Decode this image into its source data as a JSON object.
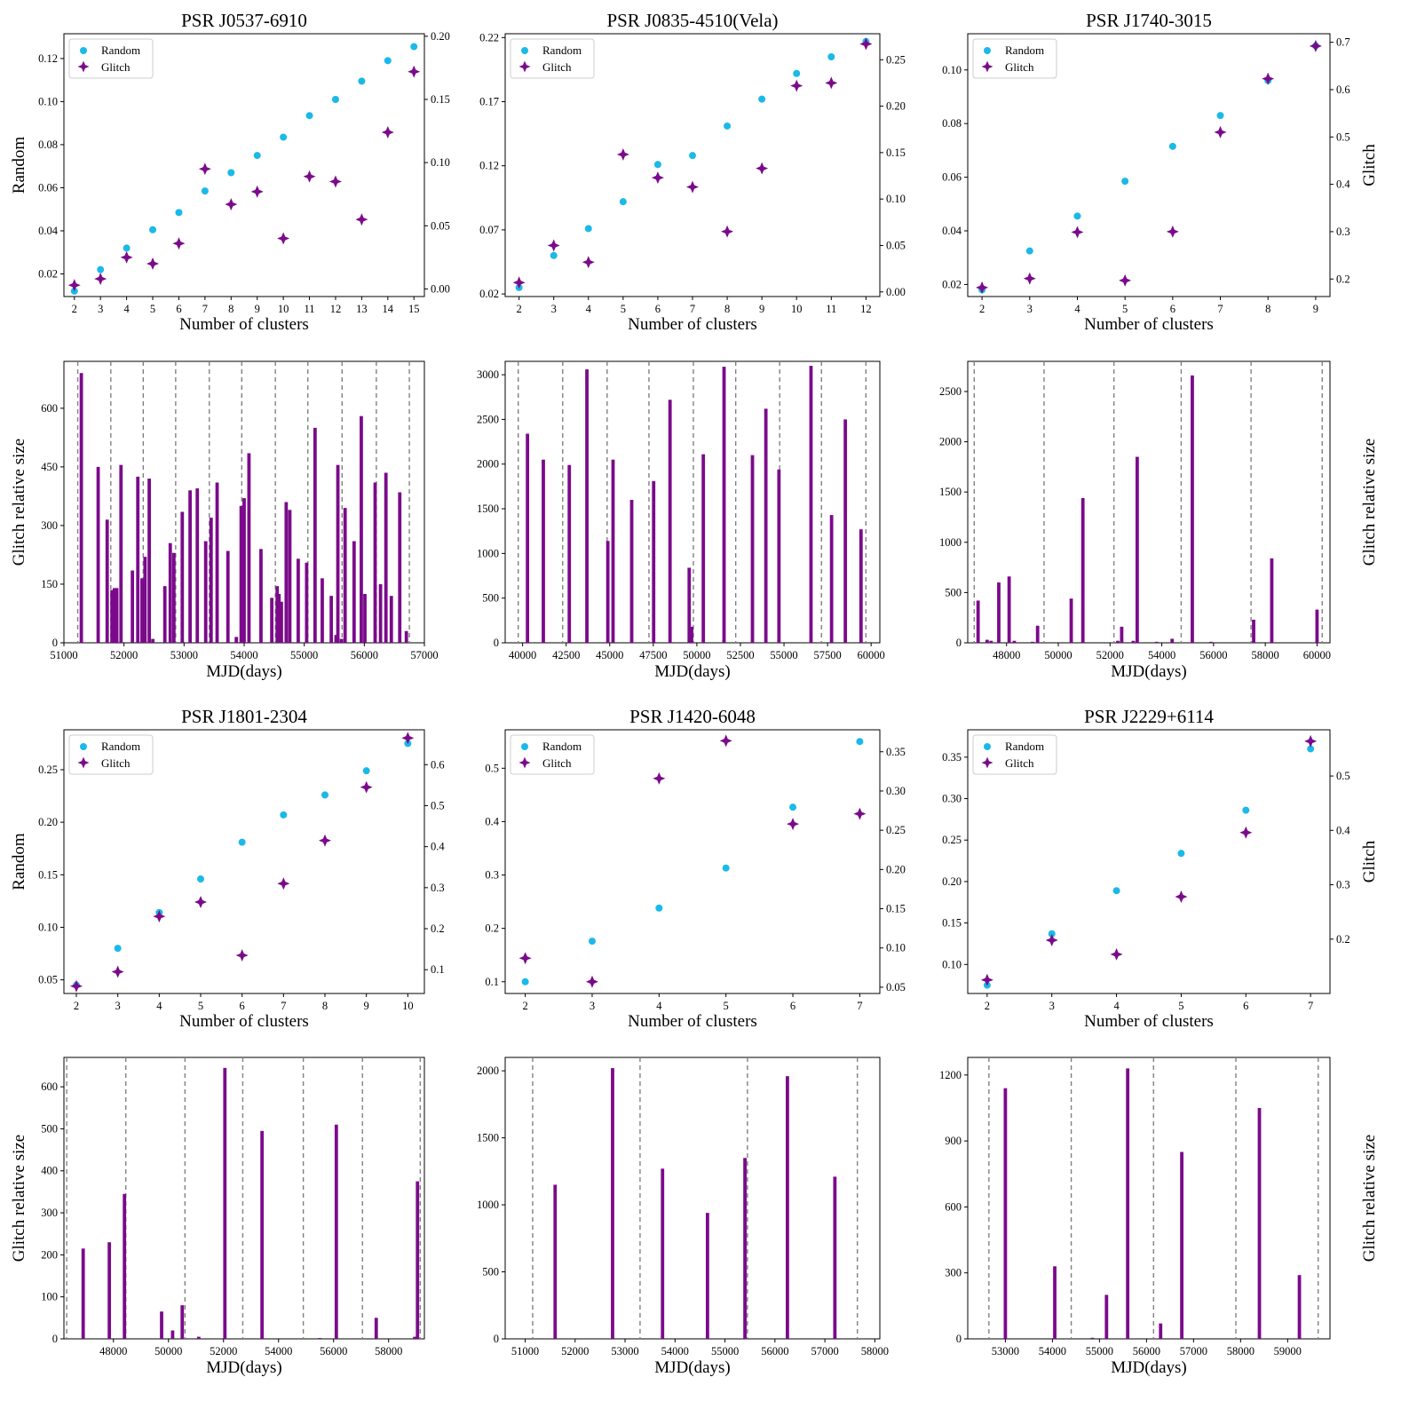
{
  "colors": {
    "random": "#1bb9e8",
    "glitch": "#7b0a8b",
    "bar": "#7b0a8b",
    "vline": "#808080"
  },
  "panels": [
    {
      "title": "PSR J0537-6910",
      "scatter": {
        "xlabel": "Number of clusters",
        "ylabel_left": "Random",
        "ylabel_right": "",
        "legend": [
          "Random",
          "Glitch"
        ],
        "x": [
          2,
          3,
          4,
          5,
          6,
          7,
          8,
          9,
          10,
          11,
          12,
          13,
          14,
          15
        ],
        "random": [
          0.012,
          0.022,
          0.032,
          0.0405,
          0.0485,
          0.0585,
          0.067,
          0.075,
          0.0835,
          0.0935,
          0.101,
          0.1095,
          0.119,
          0.1255
        ],
        "glitch": [
          0.003,
          0.008,
          0.025,
          0.02,
          0.036,
          0.095,
          0.067,
          0.077,
          0.04,
          0.089,
          0.085,
          0.055,
          0.124,
          0.172
        ],
        "xlim": [
          1.6,
          15.4
        ],
        "yleft": [
          0.0095,
          0.1315
        ],
        "yleft_ticks": [
          0.02,
          0.04,
          0.06,
          0.08,
          0.1,
          0.12
        ],
        "yleft_dec": 2,
        "yright": [
          -0.006,
          0.202
        ],
        "yright_ticks": [
          0.0,
          0.05,
          0.1,
          0.15,
          0.2
        ],
        "yright_dec": 2
      },
      "bars": {
        "xlabel": "MJD(days)",
        "ylabel": "Glitch relative size",
        "xlim": [
          51000,
          57000
        ],
        "xticks": [
          51000,
          52000,
          53000,
          54000,
          55000,
          56000,
          57000
        ],
        "ylim": [
          0,
          720
        ],
        "yticks": [
          0,
          150,
          300,
          450,
          600
        ],
        "vlines": [
          51230,
          51780,
          52320,
          52860,
          53420,
          53960,
          54520,
          55060,
          55630,
          56200,
          56750
        ],
        "x": [
          51290,
          51570,
          51720,
          51800,
          51840,
          51880,
          51950,
          52140,
          52230,
          52300,
          52350,
          52420,
          52480,
          52680,
          52770,
          52830,
          52970,
          53100,
          53220,
          53360,
          53450,
          53550,
          53730,
          53870,
          53950,
          54000,
          54080,
          54280,
          54460,
          54550,
          54580,
          54620,
          54700,
          54760,
          54900,
          55040,
          55180,
          55300,
          55450,
          55530,
          55560,
          55620,
          55680,
          55830,
          55950,
          56010,
          56180,
          56270,
          56360,
          56450,
          56590,
          56700
        ],
        "values": [
          690,
          450,
          315,
          135,
          140,
          140,
          455,
          185,
          425,
          165,
          220,
          420,
          10,
          145,
          255,
          230,
          335,
          390,
          395,
          260,
          320,
          410,
          235,
          15,
          350,
          370,
          485,
          240,
          115,
          145,
          125,
          105,
          360,
          340,
          215,
          205,
          550,
          165,
          120,
          20,
          455,
          10,
          345,
          260,
          580,
          125,
          410,
          150,
          435,
          120,
          385,
          30
        ]
      }
    },
    {
      "title": "PSR J0835-4510(Vela)",
      "scatter": {
        "xlabel": "Number of clusters",
        "ylabel_left": "",
        "ylabel_right": "",
        "legend": [
          "Random",
          "Glitch"
        ],
        "x": [
          2,
          3,
          4,
          5,
          6,
          7,
          8,
          9,
          10,
          11,
          12
        ],
        "random": [
          0.025,
          0.05,
          0.071,
          0.092,
          0.121,
          0.128,
          0.151,
          0.172,
          0.192,
          0.205,
          0.217
        ],
        "glitch": [
          0.01,
          0.05,
          0.032,
          0.148,
          0.123,
          0.113,
          0.065,
          0.133,
          0.222,
          0.225,
          0.267
        ],
        "xlim": [
          1.6,
          12.4
        ],
        "yleft": [
          0.018,
          0.223
        ],
        "yleft_ticks": [
          0.02,
          0.07,
          0.12,
          0.17,
          0.22
        ],
        "yleft_dec": 2,
        "yright": [
          -0.005,
          0.278
        ],
        "yright_ticks": [
          0.0,
          0.05,
          0.1,
          0.15,
          0.2,
          0.25
        ],
        "yright_dec": 2
      },
      "bars": {
        "xlabel": "MJD(days)",
        "ylabel": "",
        "xlim": [
          39000,
          60500
        ],
        "xticks": [
          40000,
          42500,
          45000,
          47500,
          50000,
          52500,
          55000,
          57500,
          60000
        ],
        "ylim": [
          0,
          3150
        ],
        "yticks": [
          0,
          500,
          1000,
          1500,
          2000,
          2500,
          3000
        ],
        "vlines": [
          39750,
          42300,
          44850,
          47250,
          49800,
          52230,
          54750,
          57150,
          59700
        ],
        "x": [
          40280,
          41190,
          42680,
          43690,
          44890,
          45190,
          46260,
          47520,
          48460,
          49560,
          49700,
          50370,
          51550,
          51560,
          53190,
          53960,
          54710,
          56550,
          57730,
          58520,
          59420
        ],
        "values": [
          2340,
          2050,
          1990,
          3060,
          1140,
          2050,
          1600,
          1810,
          2720,
          840,
          180,
          2110,
          30,
          3090,
          2100,
          2620,
          1940,
          3100,
          1430,
          2500,
          1270
        ]
      }
    },
    {
      "title": "PSR J1740-3015",
      "scatter": {
        "xlabel": "Number of clusters",
        "ylabel_left": "",
        "ylabel_right": "Glitch",
        "legend": [
          "Random",
          "Glitch"
        ],
        "x": [
          2,
          3,
          4,
          5,
          6,
          7,
          8,
          9
        ],
        "random": [
          0.018,
          0.0325,
          0.0455,
          0.0585,
          0.0715,
          0.083,
          0.096,
          0.109
        ],
        "glitch": [
          0.182,
          0.201,
          0.299,
          0.197,
          0.3,
          0.51,
          0.623,
          0.692
        ],
        "xlim": [
          1.7,
          9.3
        ],
        "yleft": [
          0.0155,
          0.1135
        ],
        "yleft_ticks": [
          0.02,
          0.04,
          0.06,
          0.08,
          0.1
        ],
        "yleft_dec": 2,
        "yright": [
          0.163,
          0.718
        ],
        "yright_ticks": [
          0.2,
          0.3,
          0.4,
          0.5,
          0.6,
          0.7
        ],
        "yright_dec": 1
      },
      "bars": {
        "xlabel": "MJD(days)",
        "ylabel": "Glitch relative size",
        "xlim": [
          46500,
          60500
        ],
        "xticks": [
          48000,
          50000,
          52000,
          54000,
          56000,
          58000,
          60000
        ],
        "ylim": [
          0,
          2800
        ],
        "yticks": [
          0,
          500,
          1000,
          1500,
          2000,
          2500
        ],
        "vlines": [
          46750,
          49450,
          52150,
          54750,
          57450,
          60200
        ],
        "x": [
          46900,
          47250,
          47400,
          47700,
          48100,
          48300,
          49000,
          49200,
          50500,
          50950,
          52300,
          52450,
          52900,
          53050,
          53800,
          54400,
          55180,
          55900,
          57550,
          58250,
          60000
        ],
        "values": [
          420,
          30,
          20,
          600,
          660,
          20,
          10,
          170,
          440,
          1440,
          20,
          160,
          20,
          1850,
          10,
          40,
          2660,
          10,
          230,
          840,
          330
        ]
      }
    },
    {
      "title": "PSR J1801-2304",
      "scatter": {
        "xlabel": "Number of clusters",
        "ylabel_left": "Random",
        "ylabel_right": "",
        "legend": [
          "Random",
          "Glitch"
        ],
        "x": [
          2,
          3,
          4,
          5,
          6,
          7,
          8,
          9,
          10
        ],
        "random": [
          0.045,
          0.08,
          0.114,
          0.146,
          0.181,
          0.207,
          0.226,
          0.249,
          0.275
        ],
        "glitch": [
          0.06,
          0.095,
          0.23,
          0.265,
          0.135,
          0.31,
          0.415,
          0.545,
          0.665
        ],
        "xlim": [
          1.7,
          10.4
        ],
        "yleft": [
          0.037,
          0.288
        ],
        "yleft_ticks": [
          0.05,
          0.1,
          0.15,
          0.2,
          0.25
        ],
        "yleft_dec": 2,
        "yright": [
          0.042,
          0.685
        ],
        "yright_ticks": [
          0.1,
          0.2,
          0.3,
          0.4,
          0.5,
          0.6
        ],
        "yright_dec": 1
      },
      "bars": {
        "xlabel": "MJD(days)",
        "ylabel": "Glitch relative size",
        "xlim": [
          46200,
          59300
        ],
        "xticks": [
          48000,
          50000,
          52000,
          54000,
          56000,
          58000
        ],
        "ylim": [
          0,
          670
        ],
        "yticks": [
          0,
          100,
          200,
          300,
          400,
          500,
          600
        ],
        "vlines": [
          46300,
          48450,
          50600,
          52700,
          54900,
          57050,
          59150
        ],
        "x": [
          46900,
          47850,
          48400,
          49750,
          50150,
          50500,
          51100,
          52050,
          53400,
          55500,
          56100,
          57550,
          58950,
          59050
        ],
        "values": [
          215,
          230,
          345,
          65,
          20,
          80,
          5,
          645,
          495,
          2,
          510,
          50,
          5,
          375
        ]
      }
    },
    {
      "title": "PSR J1420-6048",
      "scatter": {
        "xlabel": "Number of clusters",
        "ylabel_left": "",
        "ylabel_right": "",
        "legend": [
          "Random",
          "Glitch"
        ],
        "x": [
          2,
          3,
          4,
          5,
          6,
          7
        ],
        "random": [
          0.1,
          0.176,
          0.238,
          0.313,
          0.427,
          0.55
        ],
        "glitch": [
          0.087,
          0.057,
          0.316,
          0.364,
          0.258,
          0.271
        ],
        "xlim": [
          1.7,
          7.3
        ],
        "yleft": [
          0.078,
          0.572
        ],
        "yleft_ticks": [
          0.1,
          0.2,
          0.3,
          0.4,
          0.5
        ],
        "yleft_dec": 1,
        "yright": [
          0.042,
          0.378
        ],
        "yright_ticks": [
          0.05,
          0.1,
          0.15,
          0.2,
          0.25,
          0.3,
          0.35
        ],
        "yright_dec": 2
      },
      "bars": {
        "xlabel": "MJD(days)",
        "ylabel": "",
        "xlim": [
          50600,
          58100
        ],
        "xticks": [
          51000,
          52000,
          53000,
          54000,
          55000,
          56000,
          57000,
          58000
        ],
        "ylim": [
          0,
          2100
        ],
        "yticks": [
          0,
          500,
          1000,
          1500,
          2000
        ],
        "vlines": [
          51150,
          53300,
          55450,
          57650
        ],
        "x": [
          51600,
          52750,
          53750,
          54650,
          55400,
          56250,
          57200
        ],
        "values": [
          1150,
          2020,
          1270,
          940,
          1350,
          1960,
          1210
        ]
      }
    },
    {
      "title": "PSR J2229+6114",
      "scatter": {
        "xlabel": "Number of clusters",
        "ylabel_left": "",
        "ylabel_right": "Glitch",
        "legend": [
          "Random",
          "Glitch"
        ],
        "x": [
          2,
          3,
          4,
          5,
          6,
          7
        ],
        "random": [
          0.075,
          0.137,
          0.189,
          0.234,
          0.286,
          0.36
        ],
        "glitch": [
          0.125,
          0.198,
          0.172,
          0.278,
          0.396,
          0.564
        ],
        "xlim": [
          1.7,
          7.3
        ],
        "yleft": [
          0.065,
          0.383
        ],
        "yleft_ticks": [
          0.1,
          0.15,
          0.2,
          0.25,
          0.3,
          0.35
        ],
        "yleft_dec": 2,
        "yright": [
          0.1,
          0.585
        ],
        "yright_ticks": [
          0.2,
          0.3,
          0.4,
          0.5
        ],
        "yright_dec": 1
      },
      "bars": {
        "xlabel": "MJD(days)",
        "ylabel": "Glitch relative size",
        "xlim": [
          52200,
          59900
        ],
        "xticks": [
          53000,
          54000,
          55000,
          56000,
          57000,
          58000,
          59000
        ],
        "ylim": [
          0,
          1280
        ],
        "yticks": [
          0,
          300,
          600,
          900,
          1200
        ],
        "vlines": [
          52650,
          54400,
          56150,
          57900,
          59650
        ],
        "x": [
          53000,
          54050,
          54850,
          55150,
          55600,
          56300,
          56750,
          58400,
          59250
        ],
        "values": [
          1140,
          330,
          5,
          200,
          1230,
          70,
          850,
          1050,
          290
        ]
      }
    }
  ]
}
